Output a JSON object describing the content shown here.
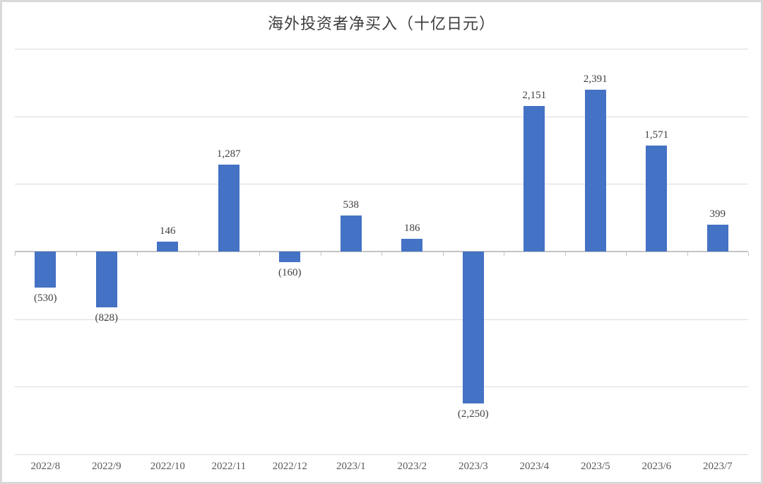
{
  "page": {
    "border_color": "#d9d9d9",
    "background_color": "#ffffff"
  },
  "chart": {
    "bar_color": "#4472c4",
    "gridline_color": "#dadada",
    "axis_color": "#c3c3c3",
    "title_color": "#3d3d3d",
    "data_label_color": "#3f3f3f",
    "axis_label_color": "#595959"
  },
  "chart_data": {
    "type": "bar",
    "title": "海外投资者净买入（十亿日元）",
    "xlabel": "",
    "ylabel": "",
    "categories": [
      "2022/8",
      "2022/9",
      "2022/10",
      "2022/11",
      "2022/12",
      "2023/1",
      "2023/2",
      "2023/3",
      "2023/4",
      "2023/5",
      "2023/6",
      "2023/7"
    ],
    "values": [
      -530,
      -828,
      146,
      1287,
      -160,
      538,
      186,
      -2250,
      2151,
      2391,
      1571,
      399
    ],
    "data_labels": [
      "(530)",
      "(828)",
      "146",
      "1,287",
      "(160)",
      "538",
      "186",
      "(2,250)",
      "2,151",
      "2,391",
      "1,571",
      "399"
    ],
    "series_name": "海外投资者净买入",
    "ylim": [
      -3000,
      3000
    ],
    "gridline_step": 1000,
    "grid": true,
    "legend_position": "none",
    "y_axis_labels_visible": false,
    "negative_format": "parentheses"
  }
}
